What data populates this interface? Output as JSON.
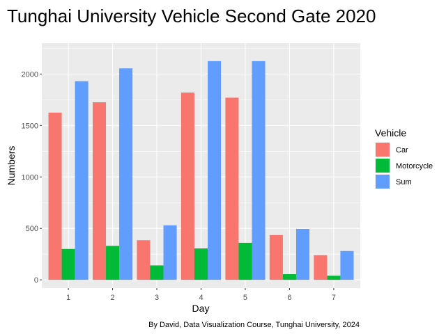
{
  "chart_data": {
    "type": "bar",
    "title": "Tunghai University Vehicle Second Gate 2020",
    "xlabel": "Day",
    "ylabel": "Numbers",
    "caption": "By David, Data Visualization Course, Tunghai University, 2024",
    "categories": [
      "1",
      "2",
      "3",
      "4",
      "5",
      "6",
      "7"
    ],
    "ylim": [
      -80,
      2300
    ],
    "yticks": [
      0,
      500,
      1000,
      1500,
      2000
    ],
    "grid": true,
    "legend": {
      "title": "Vehicle",
      "position": "right"
    },
    "series": [
      {
        "name": "Car",
        "color": "#F8766D",
        "values": [
          1625,
          1725,
          385,
          1820,
          1770,
          435,
          240
        ]
      },
      {
        "name": "Motorcycle",
        "color": "#00BA38",
        "values": [
          300,
          330,
          140,
          305,
          360,
          55,
          40
        ]
      },
      {
        "name": "Sum",
        "color": "#619CFF",
        "values": [
          1930,
          2055,
          530,
          2125,
          2125,
          495,
          280
        ]
      }
    ],
    "panel_background": "#EBEBEB",
    "grid_color": "#FFFFFF"
  }
}
